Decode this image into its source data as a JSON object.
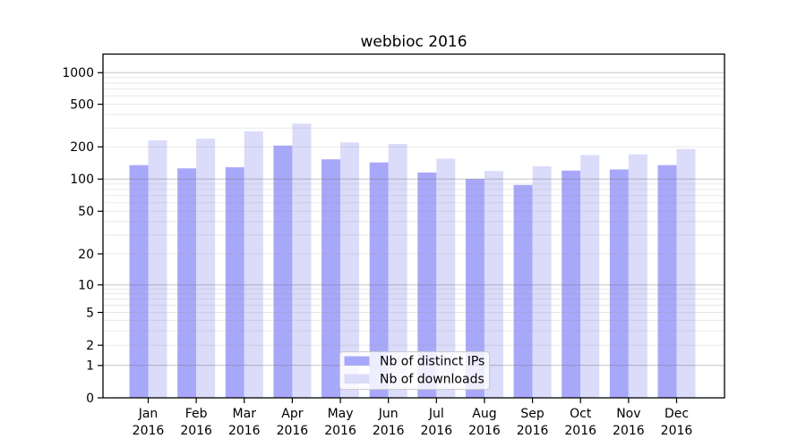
{
  "chart_data": {
    "type": "bar",
    "title": "webbioc 2016",
    "categories": [
      "Jan",
      "Feb",
      "Mar",
      "Apr",
      "May",
      "Jun",
      "Jul",
      "Aug",
      "Sep",
      "Oct",
      "Nov",
      "Dec"
    ],
    "category_year": "2016",
    "series": [
      {
        "name": "Nb of distinct IPs",
        "key": "distinct-ips",
        "color": "#a8a8fa",
        "values": [
          135,
          126,
          129,
          206,
          153,
          143,
          115,
          100,
          88,
          120,
          123,
          135
        ]
      },
      {
        "name": "Nb of downloads",
        "key": "downloads",
        "color": "#dbdbfa",
        "values": [
          230,
          238,
          280,
          330,
          220,
          213,
          155,
          119,
          132,
          168,
          170,
          191
        ]
      }
    ],
    "yscale": "log-like (compressed below 10, linear 0-1)",
    "y_ticks": [
      0,
      1,
      2,
      5,
      10,
      20,
      50,
      100,
      200,
      500,
      1000
    ],
    "ylim": [
      0,
      1500
    ],
    "xlabel": "",
    "ylabel": "",
    "grid": "horizontal major at 1,10,100,1000 + faint log minors",
    "legend_position": "inside bottom-center"
  },
  "colors": {
    "background": "#ffffff",
    "bar_distinct_ips": "#a8a8fa",
    "bar_downloads": "#dbdbfa",
    "axis": "#000000",
    "grid_major": "#c3c3c3",
    "grid_minor": "#e9e9e9",
    "legend_border": "#cccccc"
  }
}
